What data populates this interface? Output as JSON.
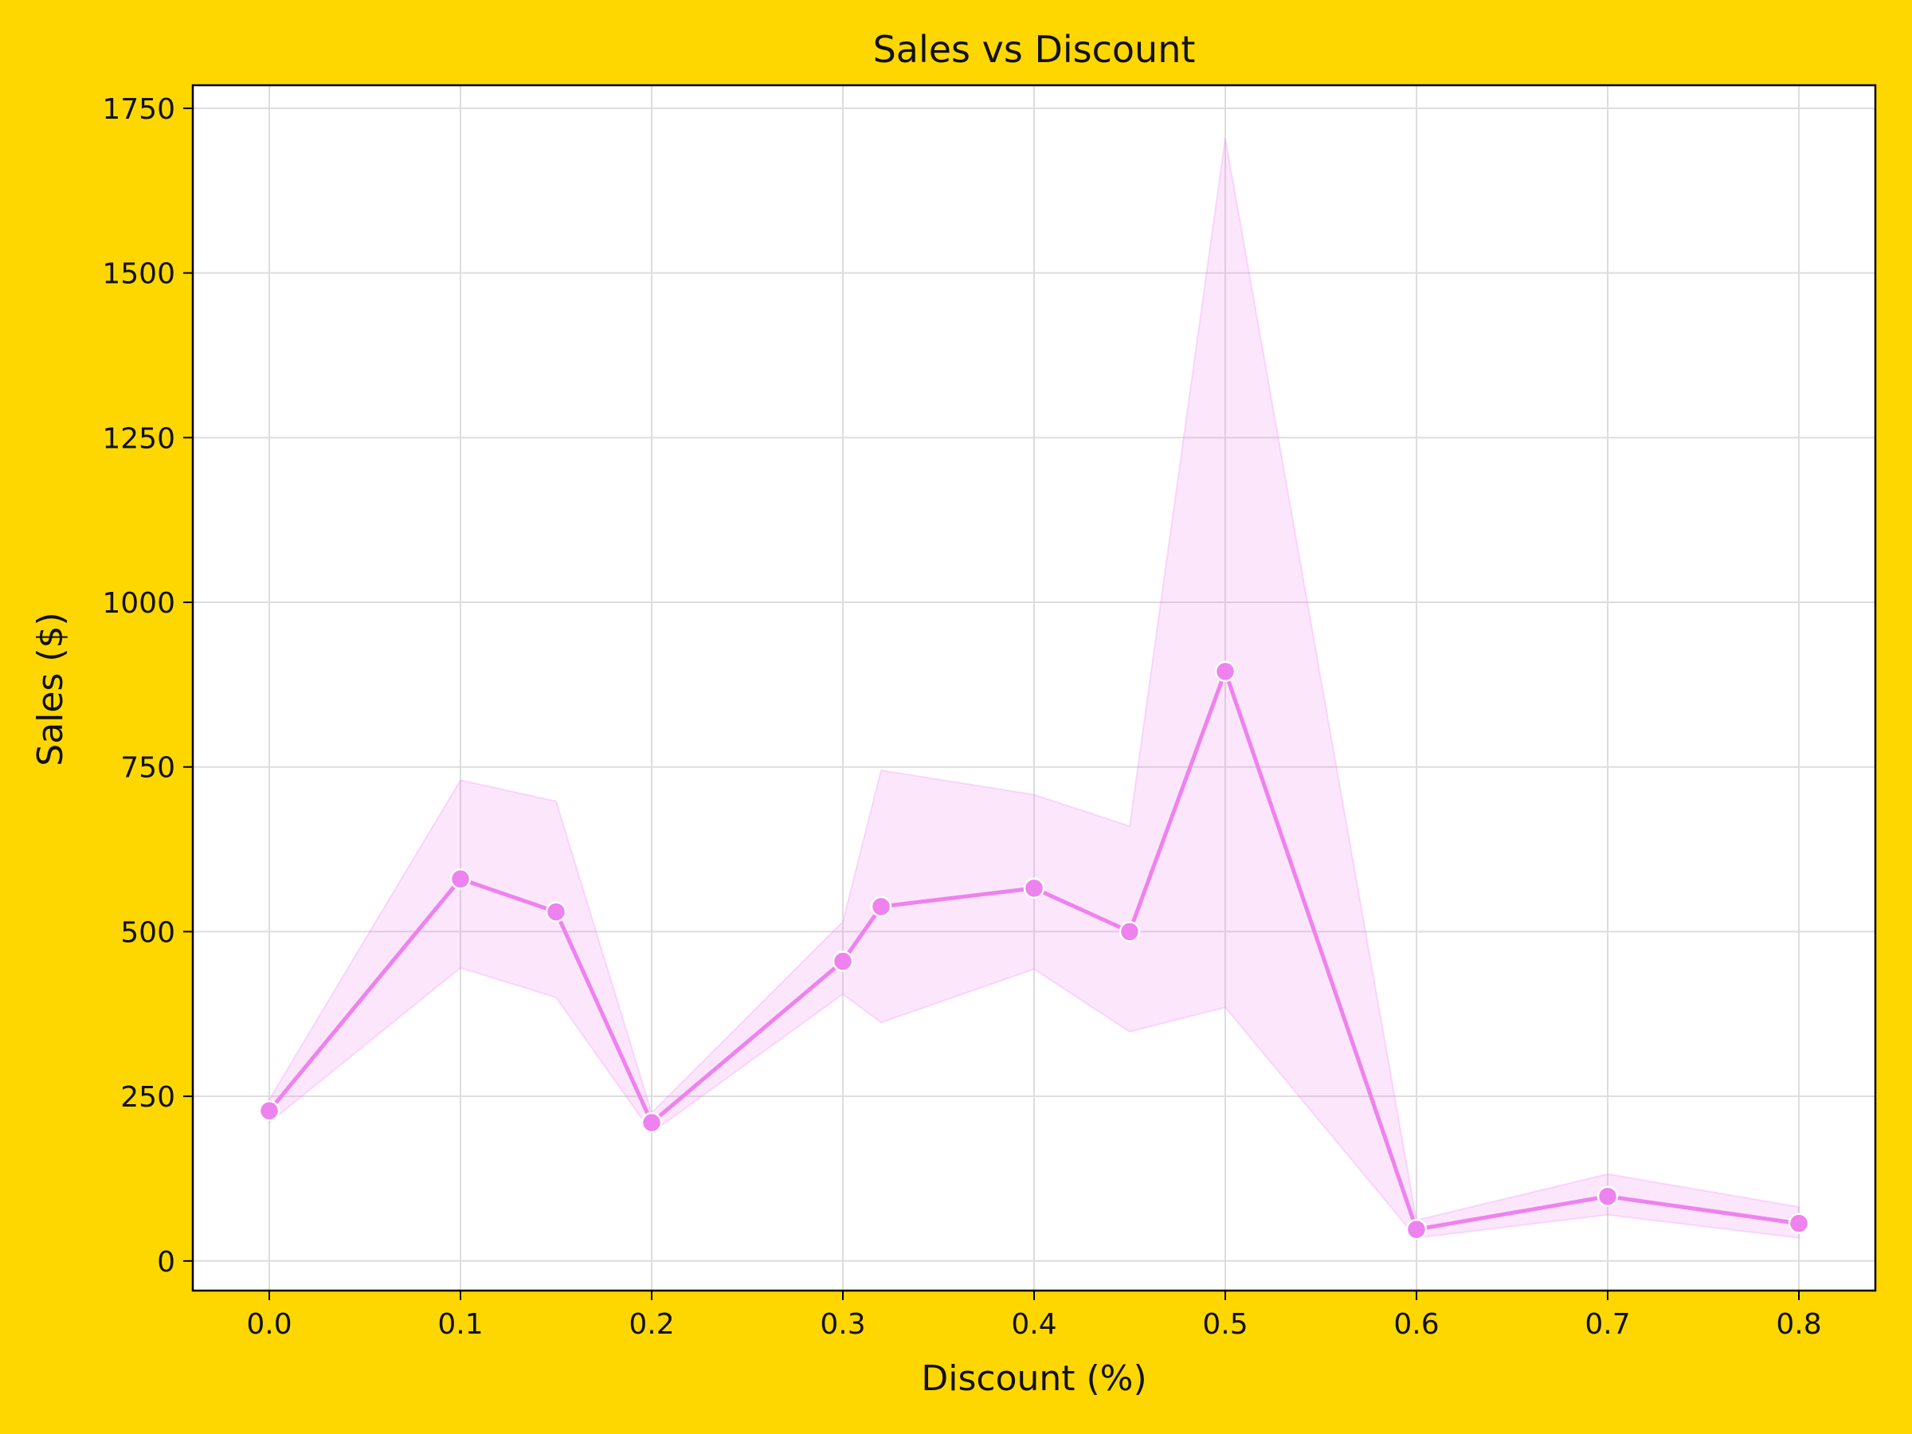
{
  "chart_data": {
    "type": "line",
    "title": "Sales vs Discount",
    "xlabel": "Discount (%)",
    "ylabel": "Sales ($)",
    "xlim": [
      -0.04,
      0.84
    ],
    "ylim": [
      -45,
      1785
    ],
    "xticks": [
      0.0,
      0.1,
      0.2,
      0.3,
      0.4,
      0.5,
      0.6,
      0.7,
      0.8
    ],
    "xtick_labels": [
      "0.0",
      "0.1",
      "0.2",
      "0.3",
      "0.4",
      "0.5",
      "0.6",
      "0.7",
      "0.8"
    ],
    "yticks": [
      0,
      250,
      500,
      750,
      1000,
      1250,
      1500,
      1750
    ],
    "ytick_labels": [
      "0",
      "250",
      "500",
      "750",
      "1000",
      "1250",
      "1500",
      "1750"
    ],
    "grid": true,
    "colors": {
      "background": "#FFD700",
      "plot_background": "#FFFFFF",
      "line": "#EE82EE",
      "band": "#EE82EE",
      "grid": "#DDDDDD"
    },
    "x": [
      0.0,
      0.1,
      0.15,
      0.2,
      0.3,
      0.32,
      0.4,
      0.45,
      0.5,
      0.6,
      0.7,
      0.8
    ],
    "series": [
      {
        "values": [
          228,
          580,
          530,
          210,
          455,
          538,
          566,
          500,
          895,
          48,
          98,
          57
        ],
        "ci_lower": [
          210,
          445,
          400,
          195,
          405,
          362,
          443,
          348,
          385,
          35,
          70,
          35
        ],
        "ci_upper": [
          245,
          730,
          698,
          225,
          515,
          745,
          708,
          660,
          1705,
          62,
          132,
          82
        ]
      }
    ]
  }
}
